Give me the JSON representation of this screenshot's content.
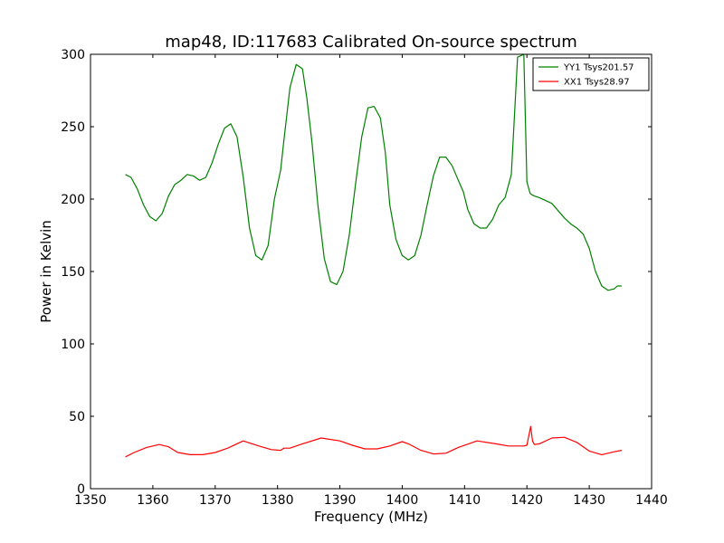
{
  "chart_data": {
    "type": "line",
    "title": "map48, ID:117683 Calibrated On-source spectrum",
    "xlabel": "Frequency (MHz)",
    "ylabel": "Power in Kelvin",
    "xlim": [
      1350,
      1440
    ],
    "ylim": [
      0,
      300
    ],
    "xticks": [
      "1350",
      "1360",
      "1370",
      "1380",
      "1390",
      "1400",
      "1410",
      "1420",
      "1430",
      "1440"
    ],
    "yticks": [
      "0",
      "50",
      "100",
      "150",
      "200",
      "250",
      "300"
    ],
    "grid": false,
    "legend_position": "top-right",
    "series": [
      {
        "name": "YY1 Tsys201.57",
        "color": "#008000",
        "x": [
          1355.6,
          1356.5,
          1357.5,
          1358.5,
          1359.5,
          1360.5,
          1361.5,
          1362.5,
          1363.5,
          1364.5,
          1365.5,
          1366.5,
          1367.5,
          1368.5,
          1369.5,
          1370.5,
          1371.5,
          1372.5,
          1373.5,
          1374.5,
          1375.5,
          1376.5,
          1377.5,
          1378.5,
          1379.5,
          1380.5,
          1381.0,
          1382.0,
          1383.0,
          1384.0,
          1384.7,
          1385.5,
          1386.5,
          1387.5,
          1388.5,
          1389.5,
          1390.5,
          1391.5,
          1392.5,
          1393.5,
          1394.5,
          1395.5,
          1396.5,
          1397.3,
          1398.0,
          1399.0,
          1400.0,
          1401.0,
          1402.0,
          1403.0,
          1404.0,
          1405.0,
          1406.0,
          1407.0,
          1408.0,
          1409.0,
          1409.8,
          1410.5,
          1411.5,
          1412.5,
          1413.5,
          1414.5,
          1415.5,
          1416.5,
          1417.5,
          1418.5,
          1419.5,
          1420.0,
          1420.5,
          1420.8,
          1421.3,
          1422.0,
          1423.0,
          1424.0,
          1425.0,
          1426.0,
          1427.0,
          1428.0,
          1429.0,
          1430.0,
          1431.0,
          1432.0,
          1433.0,
          1434.0,
          1434.5,
          1435.2
        ],
        "values": [
          217,
          215,
          207,
          196,
          188,
          185,
          190,
          202,
          210,
          213,
          217,
          216,
          213,
          215,
          225,
          238,
          249,
          252,
          243,
          215,
          180,
          161,
          158,
          168,
          200,
          220,
          240,
          277,
          293,
          290,
          270,
          240,
          195,
          159,
          143,
          141,
          150,
          175,
          210,
          243,
          263,
          264,
          256,
          232,
          196,
          172,
          161,
          158,
          161,
          175,
          196,
          216,
          229,
          229,
          223,
          213,
          205,
          193,
          183,
          180,
          180,
          186,
          196,
          201,
          217,
          298,
          300,
          212,
          204,
          203,
          202,
          201,
          199,
          197,
          192,
          187,
          183,
          180,
          176,
          166,
          150,
          140,
          137,
          138,
          140,
          140
        ]
      },
      {
        "name": "XX1 Tsys28.97",
        "color": "#ff0000",
        "x": [
          1355.6,
          1357.0,
          1359.0,
          1361.0,
          1362.5,
          1364.0,
          1366.0,
          1368.0,
          1370.0,
          1372.0,
          1374.5,
          1377.0,
          1379.0,
          1380.5,
          1381.0,
          1382.0,
          1384.0,
          1387.0,
          1390.0,
          1392.0,
          1394.0,
          1396.0,
          1398.0,
          1400.0,
          1401.0,
          1403.0,
          1405.0,
          1407.0,
          1409.0,
          1412.0,
          1415.0,
          1417.0,
          1419.5,
          1420.0,
          1420.6,
          1420.9,
          1421.2,
          1422.0,
          1424.0,
          1426.0,
          1428.0,
          1430.0,
          1432.0,
          1434.0,
          1435.2
        ],
        "values": [
          22,
          25,
          28.5,
          30.5,
          29,
          25,
          23.5,
          23.5,
          25,
          28,
          33,
          29.5,
          27,
          26.5,
          28,
          28,
          31,
          35,
          33,
          30,
          27.5,
          27.5,
          29.5,
          32.5,
          31,
          26.5,
          24,
          24.5,
          28.5,
          33,
          31,
          29.5,
          29.5,
          30,
          43,
          33,
          30.5,
          31,
          35,
          35.5,
          32,
          26,
          23.5,
          25.5,
          26.5
        ]
      }
    ]
  }
}
